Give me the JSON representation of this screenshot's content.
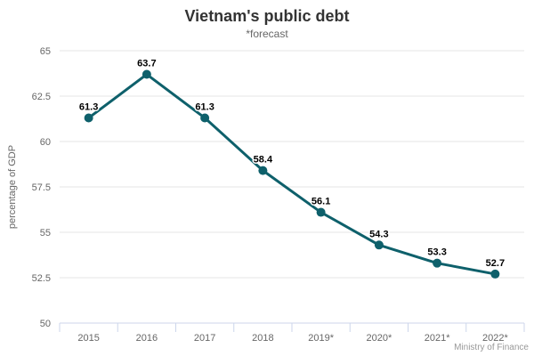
{
  "chart_data": {
    "type": "line",
    "title": "Vietnam's public debt",
    "subtitle": "*forecast",
    "ylabel": "percentage of GDP",
    "xlabel": "",
    "categories": [
      "2015",
      "2016",
      "2017",
      "2018",
      "2019*",
      "2020*",
      "2021*",
      "2022*"
    ],
    "values": [
      61.3,
      63.7,
      61.3,
      58.4,
      56.1,
      54.3,
      53.3,
      52.7
    ],
    "data_labels": [
      "61.3",
      "63.7",
      "61.3",
      "58.4",
      "56.1",
      "54.3",
      "53.3",
      "52.7"
    ],
    "ylim": [
      50,
      65
    ],
    "yticks": [
      65,
      62.5,
      60,
      57.5,
      55,
      52.5,
      50
    ],
    "grid": true,
    "legend": "none",
    "credits": "Ministry of Finance",
    "colors": {
      "line": "#0e606b",
      "marker": "#0e606b",
      "grid": "#e6e6e6",
      "axis_line": "#ccd6eb",
      "title": "#333333",
      "subtitle": "#666666",
      "tick_label": "#666666",
      "data_label": "#000000",
      "data_label_halo": "#ffffff",
      "credits": "#999999",
      "background": "#ffffff"
    }
  }
}
